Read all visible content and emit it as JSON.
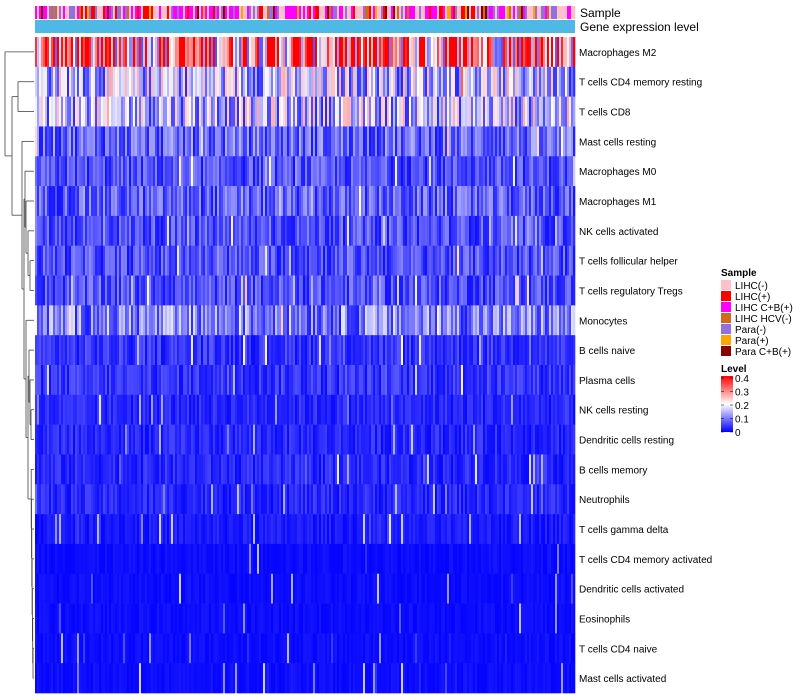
{
  "chart_data": {
    "type": "heatmap",
    "title": "",
    "annotations": {
      "sample_label": "Sample",
      "expression_label": "Gene expression level",
      "expression_color": "#4fb9e6"
    },
    "rows": [
      "Macrophages M2",
      "T cells CD4 memory resting",
      "T cells CD8",
      "Mast cells resting",
      "Macrophages M0",
      "Macrophages M1",
      "NK cells activated",
      "T cells follicular helper",
      "T cells regulatory  Tregs",
      "Monocytes",
      "B cells naive",
      "Plasma cells",
      "NK cells resting",
      "Dendritic cells resting",
      "B cells memory",
      "Neutrophils",
      "T cells gamma delta",
      "T cells CD4 memory activated",
      "Dendritic cells activated",
      "Eosinophils",
      "T cells CD4 naive",
      "Mast cells activated"
    ],
    "row_mean_levels": [
      0.3,
      0.15,
      0.15,
      0.08,
      0.06,
      0.07,
      0.06,
      0.06,
      0.06,
      0.1,
      0.04,
      0.04,
      0.03,
      0.03,
      0.03,
      0.03,
      0.02,
      0.01,
      0.01,
      0.01,
      0.01,
      0.01
    ],
    "sample_legend": {
      "title": "Sample",
      "items": [
        {
          "label": "LIHC(-)",
          "color": "#ffc0cb"
        },
        {
          "label": "LIHC(+)",
          "color": "#ff0000"
        },
        {
          "label": "LIHC C+B(+)",
          "color": "#ff00ff"
        },
        {
          "label": "LIHC HCV(-)",
          "color": "#d2691e"
        },
        {
          "label": "Para(-)",
          "color": "#9370db"
        },
        {
          "label": "Para(+)",
          "color": "#ffa500"
        },
        {
          "label": "Para C+B(+)",
          "color": "#8b0000"
        }
      ]
    },
    "level_legend": {
      "title": "Level",
      "breaks": [
        "0.4",
        "0.3",
        "0.2",
        "0.1",
        "0"
      ],
      "range": [
        0,
        0.4
      ],
      "colors": [
        "#0000ff",
        "#ffffff",
        "#ff0000"
      ]
    }
  }
}
